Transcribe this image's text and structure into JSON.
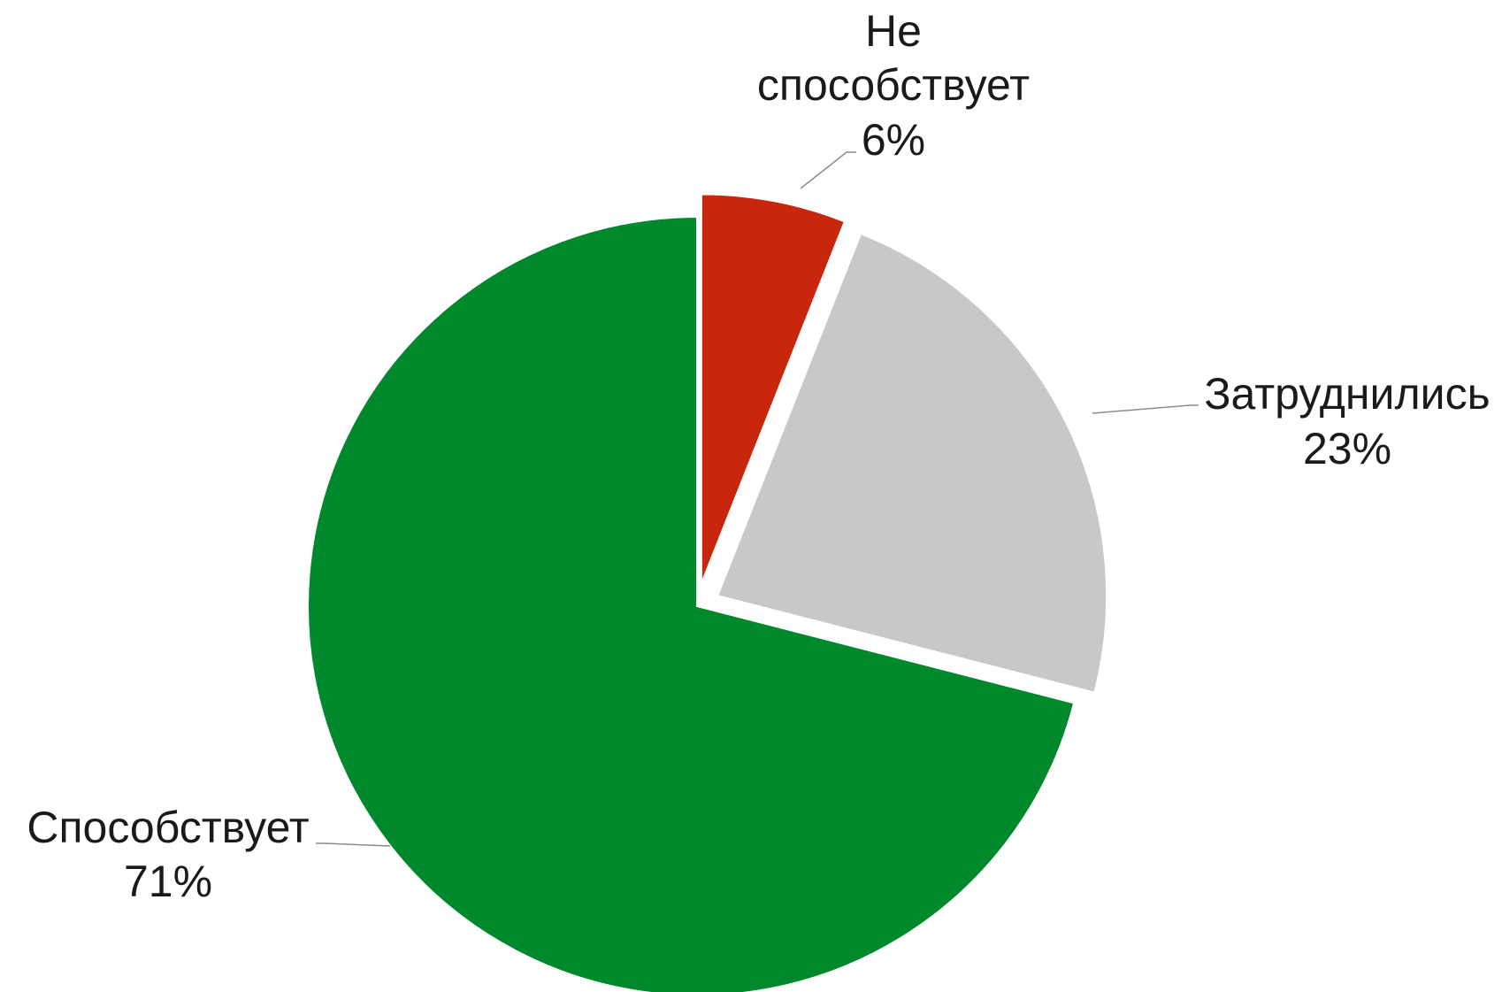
{
  "chart_data": {
    "type": "pie",
    "title": "",
    "slices": [
      {
        "name": "Не способствует",
        "label_lines": [
          "Не",
          "способствует"
        ],
        "value": 6,
        "label": "6%",
        "color": "#c8270d",
        "exploded": true
      },
      {
        "name": "Затруднились",
        "label_lines": [
          "Затруднились"
        ],
        "value": 23,
        "label": "23%",
        "color": "#c6c8ca",
        "exploded": true
      },
      {
        "name": "Способствует",
        "label_lines": [
          "Способствует"
        ],
        "value": 71,
        "label": "71%",
        "color": "#00892c",
        "exploded": false
      }
    ],
    "start_angle": "12 o'clock",
    "direction": "clockwise",
    "legend": "none",
    "data_labels": "outside with leader lines"
  }
}
